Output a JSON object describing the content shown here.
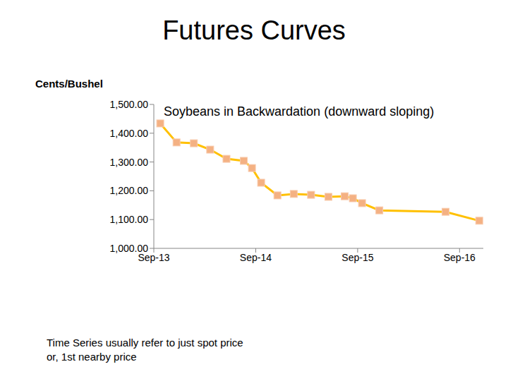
{
  "chart_data": {
    "type": "line",
    "title": "Futures Curves",
    "subtitle": "Soybeans in Backwardation (downward sloping)",
    "y_label": "Cents/Bushel",
    "annotation": "Time Series usually refer to just spot price or, 1st nearby price",
    "x": [
      2013.73,
      2013.89,
      2014.06,
      2014.22,
      2014.38,
      2014.55,
      2014.63,
      2014.72,
      2014.88,
      2015.04,
      2015.21,
      2015.38,
      2015.54,
      2015.62,
      2015.71,
      2015.88,
      2016.53,
      2016.86
    ],
    "values": [
      1434,
      1368,
      1365,
      1343,
      1311,
      1304,
      1279,
      1228,
      1184,
      1189,
      1186,
      1179,
      1181,
      1174,
      1157,
      1132,
      1127,
      1096
    ],
    "color": "#ffc000",
    "marker": "square",
    "xlim": [
      2013.667,
      2016.9
    ],
    "xticks": [
      {
        "value": 2013.667,
        "label": "Sep-13"
      },
      {
        "value": 2014.667,
        "label": "Sep-14"
      },
      {
        "value": 2015.667,
        "label": "Sep-15"
      },
      {
        "value": 2016.667,
        "label": "Sep-16"
      }
    ],
    "ylim": [
      1000,
      1500
    ],
    "yticks": [
      {
        "value": 1000,
        "label": "1,000.00"
      },
      {
        "value": 1100,
        "label": "1,100.00"
      },
      {
        "value": 1200,
        "label": "1,200.00"
      },
      {
        "value": 1300,
        "label": "1,300.00"
      },
      {
        "value": 1400,
        "label": "1,400.00"
      },
      {
        "value": 1500,
        "label": "1,500.00"
      }
    ],
    "grid": false
  }
}
